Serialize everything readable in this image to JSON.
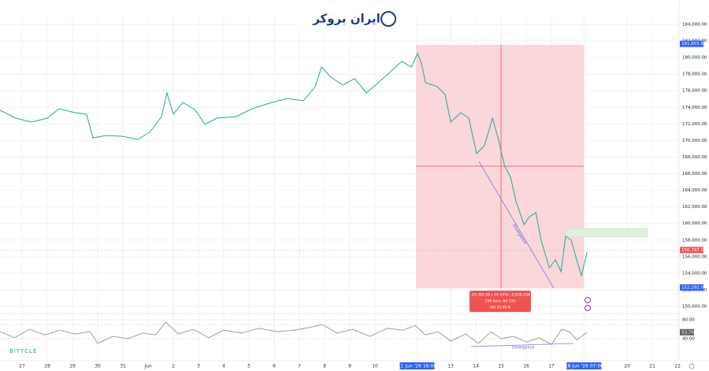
{
  "header": {
    "logo": "ایران بروکر",
    "watermark": "BITYCLE"
  },
  "measure": {
    "change": "-29,361.58 (-16.16%) -2,936,158",
    "bars": "159 bars, 6d 15h",
    "volume": "Vol 25.95 K"
  },
  "annotations": {
    "divergence_price": "Divergence",
    "divergence_rsi": "Divergence"
  },
  "chart_data": [
    {
      "type": "line",
      "color": "#26a69a",
      "x": [
        -0.875,
        -0.25,
        0.375,
        1,
        1.47,
        2.09,
        2.56,
        2.81,
        3.34,
        3.97,
        4.59,
        5.06,
        5.53,
        5.75,
        6,
        6.38,
        6.88,
        7.25,
        7.72,
        8.5,
        9.13,
        9.91,
        10.53,
        11.16,
        11.63,
        11.88,
        12.25,
        12.72,
        13.19,
        13.66,
        14.13,
        14.59,
        15.06,
        15.44,
        15.69,
        15.84,
        16,
        16.47,
        16.78,
        17,
        17.41,
        17.72,
        18.03,
        18.34,
        18.66,
        18.88,
        19.13,
        19.38,
        19.59,
        19.91,
        20.13,
        20.38,
        20.59,
        20.91,
        21.16,
        21.38,
        21.56,
        21.78,
        22,
        22.19,
        22.41
      ],
      "values": [
        173650,
        172700,
        172220,
        172700,
        173840,
        173360,
        173170,
        170320,
        170610,
        170510,
        170130,
        170990,
        172890,
        175740,
        173170,
        174600,
        173650,
        171940,
        172700,
        172890,
        173840,
        174600,
        175070,
        174790,
        176500,
        178870,
        177640,
        176690,
        177450,
        175740,
        176980,
        178210,
        179540,
        178870,
        180490,
        179350,
        176980,
        176500,
        175550,
        172220,
        173360,
        172700,
        168420,
        169380,
        172700,
        170320,
        167000,
        165570,
        162720,
        159870,
        160820,
        161300,
        157980,
        154660,
        155610,
        154180,
        158460,
        157980,
        155610,
        153710,
        156560
      ],
      "xlim": [
        -0.875,
        26.06
      ],
      "ylim": [
        149150,
        185230
      ],
      "xticks": [
        {
          "value": 0,
          "label": "27"
        },
        {
          "value": 1,
          "label": "28"
        },
        {
          "value": 2,
          "label": "29"
        },
        {
          "value": 3,
          "label": "30"
        },
        {
          "value": 4,
          "label": "31"
        },
        {
          "value": 5,
          "label": "Jun"
        },
        {
          "value": 6,
          "label": "2"
        },
        {
          "value": 7,
          "label": "3"
        },
        {
          "value": 8,
          "label": "4"
        },
        {
          "value": 9,
          "label": "5"
        },
        {
          "value": 10,
          "label": "6"
        },
        {
          "value": 11,
          "label": "7"
        },
        {
          "value": 12,
          "label": "8"
        },
        {
          "value": 13,
          "label": "9"
        },
        {
          "value": 14,
          "label": "10"
        },
        {
          "value": 15.67,
          "label": "11 Jun '26 16:00"
        },
        {
          "value": 17,
          "label": "13"
        },
        {
          "value": 18,
          "label": "14"
        },
        {
          "value": 19,
          "label": "15"
        },
        {
          "value": 20,
          "label": "16"
        },
        {
          "value": 21,
          "label": "17"
        },
        {
          "value": 22.29,
          "label": "18 Jun '26 07:00"
        },
        {
          "value": 24,
          "label": "20"
        },
        {
          "value": 25,
          "label": "21"
        },
        {
          "value": 26,
          "label": "22"
        }
      ],
      "yticks": [
        {
          "value": 150000,
          "label": "150,000.00"
        },
        {
          "value": 152000,
          "label": "152,000.00"
        },
        {
          "value": 154000,
          "label": "154,000.00"
        },
        {
          "value": 156000,
          "label": "156,000.00"
        },
        {
          "value": 158000,
          "label": "158,000.00"
        },
        {
          "value": 160000,
          "label": "160,000.00"
        },
        {
          "value": 162000,
          "label": "162,000.00"
        },
        {
          "value": 164000,
          "label": "164,000.00"
        },
        {
          "value": 166000,
          "label": "166,000.00"
        },
        {
          "value": 168000,
          "label": "168,000.00"
        },
        {
          "value": 170000,
          "label": "170,000.00"
        },
        {
          "value": 172000,
          "label": "172,000.00"
        },
        {
          "value": 174000,
          "label": "174,000.00"
        },
        {
          "value": 176000,
          "label": "176,000.00"
        },
        {
          "value": 178000,
          "label": "178,000.00"
        },
        {
          "value": 180000,
          "label": "180,000.00"
        },
        {
          "value": 182000,
          "label": "182,000.00"
        },
        {
          "value": 184000,
          "label": "184,000.00"
        }
      ],
      "price_labels": [
        {
          "value": 181655.82,
          "label": "181,655.82",
          "color": "#2962ff"
        },
        {
          "value": 156797,
          "label": "156,797.00",
          "color": "#ef5350"
        },
        {
          "value": 152292.04,
          "label": "152,292.04",
          "color": "#2962ff"
        }
      ]
    },
    {
      "type": "line",
      "color": "#9e9e9e",
      "x": [
        -0.875,
        -0.3,
        0.3,
        0.9,
        1.5,
        2.1,
        2.7,
        3.0,
        3.6,
        4.2,
        4.8,
        5.3,
        5.7,
        6.2,
        6.8,
        7.4,
        8.0,
        8.7,
        9.4,
        10.1,
        10.8,
        11.5,
        11.9,
        12.5,
        13.1,
        13.8,
        14.5,
        15.1,
        15.6,
        16.0,
        16.5,
        17.0,
        17.6,
        18.1,
        18.6,
        19.0,
        19.5,
        20.0,
        20.5,
        21.0,
        21.4,
        21.7,
        22.0,
        22.2,
        22.41
      ],
      "values": [
        55,
        42,
        60,
        48,
        58,
        50,
        55,
        30,
        45,
        40,
        52,
        48,
        75,
        50,
        60,
        42,
        58,
        52,
        62,
        55,
        58,
        65,
        70,
        52,
        60,
        45,
        62,
        58,
        68,
        48,
        55,
        35,
        50,
        30,
        55,
        40,
        45,
        33,
        42,
        28,
        60,
        55,
        38,
        45,
        53.7
      ],
      "xlim": [
        -0.875,
        26.06
      ],
      "ylim": [
        0,
        93.3
      ],
      "yticks": [
        {
          "value": 80,
          "label": "80.00"
        },
        {
          "value": 40,
          "label": "40.00"
        }
      ],
      "last_label": {
        "value": 53.7,
        "label": "53.70"
      }
    }
  ]
}
